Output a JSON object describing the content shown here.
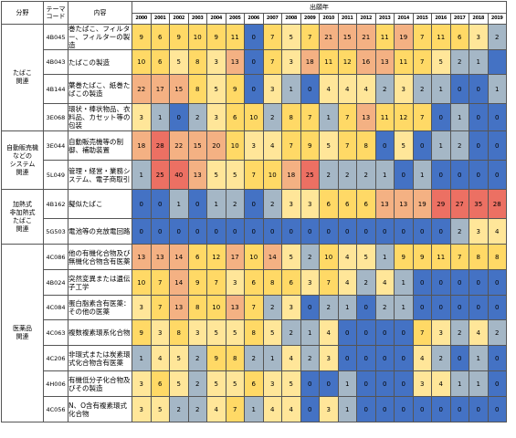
{
  "header": {
    "category": "分野",
    "theme_code": "テーマ\nコード",
    "content": "内容",
    "year_group": "出願年"
  },
  "years": [
    "2000",
    "2001",
    "2002",
    "2003",
    "2004",
    "2005",
    "2006",
    "2007",
    "2008",
    "2009",
    "2010",
    "2011",
    "2012",
    "2013",
    "2014",
    "2015",
    "2016",
    "2017",
    "2018",
    "2019"
  ],
  "colors": {
    "blue": "#4472c4",
    "gray": "#a5b7c6",
    "lightyellow": "#ffe699",
    "yellow": "#ffd966",
    "orange": "#f4b183",
    "red": "#ec7063"
  },
  "groups": [
    {
      "name": "たばこ\n関連",
      "rows": [
        {
          "code": "4B045",
          "content": "巻たばこ、フィルター、フィルターの製造",
          "values": [
            9,
            6,
            9,
            10,
            9,
            11,
            0,
            7,
            5,
            7,
            21,
            15,
            21,
            11,
            19,
            7,
            11,
            6,
            3,
            2
          ]
        },
        {
          "code": "4B043",
          "content": "たばこの製造",
          "values": [
            10,
            6,
            5,
            8,
            3,
            13,
            0,
            7,
            3,
            18,
            11,
            12,
            16,
            13,
            11,
            7,
            5,
            2,
            1,
            ""
          ]
        },
        {
          "code": "4B144",
          "content": "葉巻たばこ、紙巻たばこの製造",
          "values": [
            22,
            17,
            15,
            8,
            5,
            9,
            0,
            3,
            1,
            0,
            4,
            4,
            4,
            2,
            3,
            2,
            1,
            0,
            0,
            1
          ]
        },
        {
          "code": "3E068",
          "content": "環状・棒状物品、衣料品、カセット等の包装",
          "values": [
            3,
            1,
            0,
            2,
            3,
            6,
            10,
            2,
            8,
            7,
            1,
            7,
            13,
            11,
            12,
            7,
            0,
            1,
            0,
            0
          ]
        }
      ]
    },
    {
      "name": "自動販売機\nなどの\nシステム\n関連",
      "rows": [
        {
          "code": "3E044",
          "content": "自動販売機等の制御、補助装置",
          "values": [
            18,
            28,
            22,
            15,
            20,
            10,
            3,
            4,
            7,
            9,
            5,
            7,
            8,
            0,
            5,
            0,
            1,
            2,
            0,
            0
          ]
        },
        {
          "code": "5L049",
          "content": "管理・経営・業務システム、電子商取引",
          "values": [
            1,
            25,
            40,
            13,
            5,
            5,
            7,
            10,
            18,
            25,
            2,
            2,
            2,
            1,
            0,
            1,
            0,
            0,
            0,
            0
          ]
        }
      ]
    },
    {
      "name": "加熱式\n非加熱式\nたばこ\n関連",
      "rows": [
        {
          "code": "4B162",
          "content": "擬似たばこ",
          "values": [
            0,
            0,
            1,
            0,
            1,
            2,
            0,
            2,
            3,
            3,
            6,
            6,
            6,
            13,
            13,
            19,
            29,
            27,
            35,
            28
          ]
        },
        {
          "code": "5G503",
          "content": "電池等の充放電回路",
          "values": [
            0,
            0,
            0,
            0,
            0,
            0,
            0,
            0,
            0,
            0,
            0,
            0,
            0,
            0,
            0,
            0,
            0,
            2,
            3,
            4
          ]
        }
      ]
    },
    {
      "name": "医薬品\n関連",
      "rows": [
        {
          "code": "4C086",
          "content": "他の有機化合物及び無機化合物含有医薬",
          "values": [
            13,
            13,
            14,
            6,
            12,
            17,
            10,
            14,
            5,
            2,
            10,
            4,
            5,
            1,
            9,
            9,
            11,
            7,
            8,
            8
          ]
        },
        {
          "code": "4B024",
          "content": "突然変異または遺伝子工学",
          "values": [
            10,
            7,
            14,
            9,
            7,
            3,
            6,
            8,
            6,
            3,
            7,
            4,
            2,
            4,
            1,
            0,
            0,
            0,
            0,
            0
          ]
        },
        {
          "code": "4C084",
          "content": "蛋白脂素含有医薬：その他の医薬",
          "values": [
            3,
            7,
            13,
            8,
            10,
            13,
            7,
            2,
            3,
            0,
            2,
            1,
            0,
            2,
            1,
            0,
            0,
            0,
            0,
            0
          ]
        },
        {
          "code": "4C063",
          "content": "複数複素環系化合物",
          "values": [
            9,
            3,
            8,
            3,
            5,
            5,
            8,
            5,
            2,
            1,
            4,
            0,
            0,
            0,
            0,
            7,
            3,
            2,
            4,
            2
          ]
        },
        {
          "code": "4C206",
          "content": "非環式または炭素環式化合物含有医薬",
          "values": [
            1,
            4,
            5,
            2,
            9,
            8,
            2,
            1,
            4,
            2,
            3,
            0,
            0,
            0,
            0,
            4,
            2,
            0,
            1,
            0
          ]
        },
        {
          "code": "4H006",
          "content": "有機低分子化合物及びその製造",
          "values": [
            3,
            6,
            5,
            2,
            5,
            5,
            6,
            3,
            5,
            0,
            0,
            1,
            0,
            0,
            0,
            3,
            4,
            1,
            1,
            0
          ]
        },
        {
          "code": "4C056",
          "content": "N、O含有複素環式化合物",
          "values": [
            3,
            5,
            2,
            2,
            4,
            7,
            1,
            4,
            4,
            0,
            3,
            1,
            0,
            0,
            0,
            0,
            0,
            0,
            0,
            0
          ]
        }
      ]
    }
  ]
}
